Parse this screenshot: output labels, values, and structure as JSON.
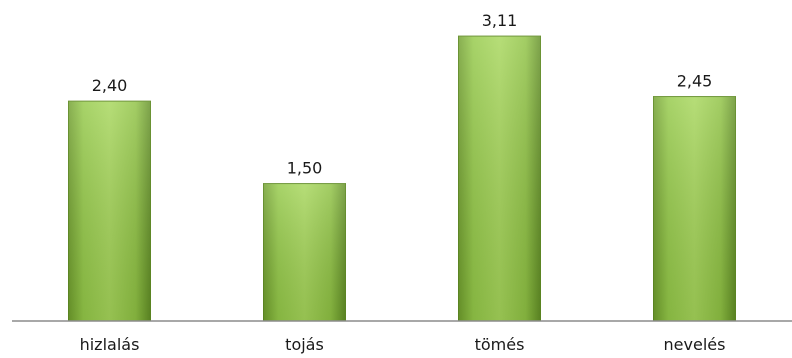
{
  "chart_data": {
    "type": "bar",
    "categories": [
      "hizlalás",
      "tojás",
      "tömés",
      "nevelés"
    ],
    "values": [
      2.4,
      1.5,
      3.11,
      2.45
    ],
    "value_labels": [
      "2,40",
      "1,50",
      "3,11",
      "2,45"
    ],
    "ylim": [
      0,
      3.2
    ],
    "grid": false,
    "legend": "none",
    "bar_color": "#8cc63f"
  }
}
